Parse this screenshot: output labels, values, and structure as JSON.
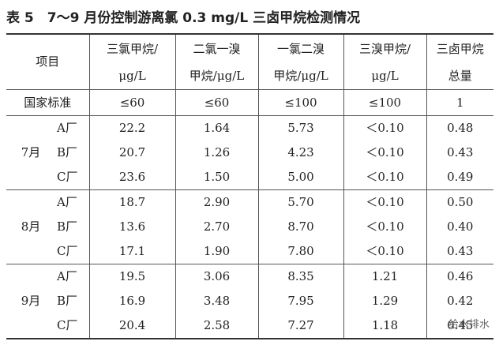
{
  "title": "表 5　7～9 月份控制游离氯 0.3 mg/L 三卤甲烷检测情况",
  "table": {
    "header": {
      "item": "项目",
      "columns": [
        [
          "三氯甲烷/",
          "μg/L"
        ],
        [
          "二氯一溴",
          "甲烷/μg/L"
        ],
        [
          "一氯二溴",
          "甲烷/μg/L"
        ],
        [
          "三溴甲烷/",
          "μg/L"
        ],
        [
          "三卤甲烷",
          "总量"
        ]
      ]
    },
    "standard": {
      "label": "国家标准",
      "values": [
        "≤60",
        "≤60",
        "≤100",
        "≤100",
        "1"
      ]
    },
    "groups": [
      {
        "month": "7月",
        "rows": [
          {
            "plant": "A厂",
            "values": [
              "22.2",
              "1.64",
              "5.73",
              "＜0.10",
              "0.48"
            ]
          },
          {
            "plant": "B厂",
            "values": [
              "20.7",
              "1.26",
              "4.23",
              "＜0.10",
              "0.43"
            ]
          },
          {
            "plant": "C厂",
            "values": [
              "23.6",
              "1.50",
              "5.00",
              "＜0.10",
              "0.49"
            ]
          }
        ]
      },
      {
        "month": "8月",
        "rows": [
          {
            "plant": "A厂",
            "values": [
              "18.7",
              "2.90",
              "5.70",
              "＜0.10",
              "0.50"
            ]
          },
          {
            "plant": "B厂",
            "values": [
              "13.6",
              "2.70",
              "8.70",
              "＜0.10",
              "0.40"
            ]
          },
          {
            "plant": "C厂",
            "values": [
              "17.1",
              "1.90",
              "7.80",
              "＜0.10",
              "0.43"
            ]
          }
        ]
      },
      {
        "month": "9月",
        "rows": [
          {
            "plant": "A厂",
            "values": [
              "19.5",
              "3.06",
              "8.35",
              "1.21",
              "0.46"
            ]
          },
          {
            "plant": "B厂",
            "values": [
              "16.9",
              "3.48",
              "7.95",
              "1.29",
              "0.42"
            ]
          },
          {
            "plant": "C厂",
            "values": [
              "20.4",
              "2.58",
              "7.27",
              "1.18",
              "0.45"
            ]
          }
        ]
      }
    ]
  },
  "watermark": "给水排水"
}
